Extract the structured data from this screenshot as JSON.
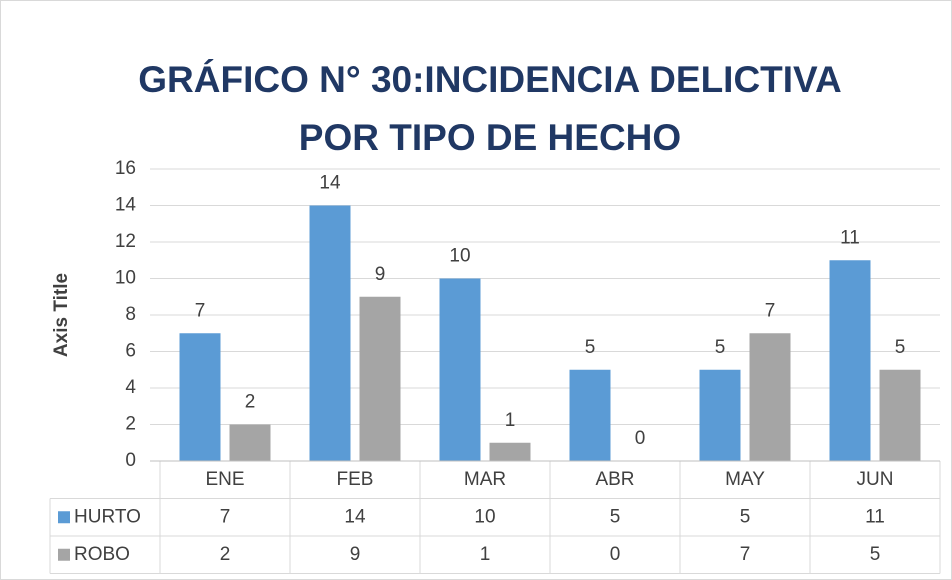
{
  "chart_data": {
    "type": "bar",
    "title": [
      "GRÁFICO N° 30:INCIDENCIA DELICTIVA",
      "POR TIPO DE HECHO"
    ],
    "y_label": "Axis Title",
    "categories": [
      "ENE",
      "FEB",
      "MAR",
      "ABR",
      "MAY",
      "JUN"
    ],
    "series": [
      {
        "name": "HURTO",
        "color": "#5b9bd5",
        "values": [
          7,
          14,
          10,
          5,
          5,
          11
        ]
      },
      {
        "name": "ROBO",
        "color": "#a5a5a5",
        "values": [
          2,
          9,
          1,
          0,
          7,
          5
        ]
      }
    ],
    "ylim": [
      0,
      16
    ],
    "yticks": [
      0,
      2,
      4,
      6,
      8,
      10,
      12,
      14,
      16
    ],
    "grid": true,
    "data_table": true
  }
}
